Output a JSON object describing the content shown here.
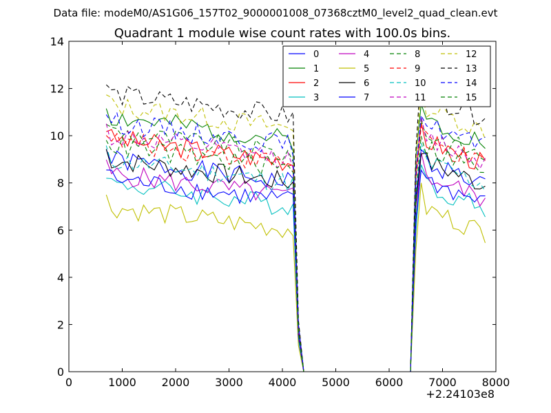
{
  "chart_data": {
    "type": "line",
    "suptitle": "Data file: modeM0/AS1G06_157T02_9000001008_07368cztM0_level2_quad_clean.evt",
    "title": "Quadrant 1 module wise count rates with 100.0s bins.",
    "xlabel": "",
    "ylabel": "",
    "xlim": [
      0,
      8000
    ],
    "ylim": [
      0,
      14
    ],
    "xticks": [
      0,
      1000,
      2000,
      3000,
      4000,
      5000,
      6000,
      7000,
      8000
    ],
    "xtick_labels": [
      "0",
      "1000",
      "2000",
      "3000",
      "4000",
      "5000",
      "6000",
      "7000",
      "8000"
    ],
    "yticks": [
      0,
      2,
      4,
      6,
      8,
      10,
      12,
      14
    ],
    "ytick_labels": [
      "0",
      "2",
      "4",
      "6",
      "8",
      "10",
      "12",
      "14"
    ],
    "x_offset_label": "+2.24103e8",
    "legend_position": "top-right",
    "x": [
      700,
      800,
      900,
      1000,
      1100,
      1200,
      1300,
      1400,
      1500,
      1600,
      1700,
      1800,
      1900,
      2000,
      2100,
      2200,
      2300,
      2400,
      2500,
      2600,
      2700,
      2800,
      2900,
      3000,
      3100,
      3200,
      3300,
      3400,
      3500,
      3600,
      3700,
      3800,
      3900,
      4000,
      4100,
      4200,
      4300,
      4400,
      4500,
      6400,
      6500,
      6600,
      6700,
      6800,
      6900,
      7000,
      7100,
      7200,
      7300,
      7400,
      7500,
      7600,
      7700,
      7800
    ],
    "series": [
      {
        "name": "0",
        "color": "#0000ff",
        "dash": "solid",
        "level": 8.0
      },
      {
        "name": "1",
        "color": "#008000",
        "dash": "solid",
        "level": 9.8
      },
      {
        "name": "2",
        "color": "#ff0000",
        "dash": "solid",
        "level": 8.9
      },
      {
        "name": "3",
        "color": "#00bfbf",
        "dash": "solid",
        "level": 7.0
      },
      {
        "name": "4",
        "color": "#bf00bf",
        "dash": "solid",
        "level": 7.4
      },
      {
        "name": "5",
        "color": "#bfbf00",
        "dash": "solid",
        "level": 6.0
      },
      {
        "name": "6",
        "color": "#000000",
        "dash": "solid",
        "level": 8.0
      },
      {
        "name": "7",
        "color": "#0000ff",
        "dash": "solid",
        "level": 7.2
      },
      {
        "name": "8",
        "color": "#008000",
        "dash": "dashed",
        "level": 9.2
      },
      {
        "name": "9",
        "color": "#ff0000",
        "dash": "dashed",
        "level": 8.8
      },
      {
        "name": "10",
        "color": "#00bfbf",
        "dash": "dashed",
        "level": 8.0
      },
      {
        "name": "11",
        "color": "#bf00bf",
        "dash": "dashed",
        "level": 9.0
      },
      {
        "name": "12",
        "color": "#bfbf00",
        "dash": "dashed",
        "level": 10.3
      },
      {
        "name": "13",
        "color": "#000000",
        "dash": "dashed",
        "level": 10.8
      },
      {
        "name": "14",
        "color": "#0000ff",
        "dash": "dashed",
        "level": 9.6
      },
      {
        "name": "15",
        "color": "#008000",
        "dash": "dashed",
        "level": 8.6
      }
    ]
  }
}
